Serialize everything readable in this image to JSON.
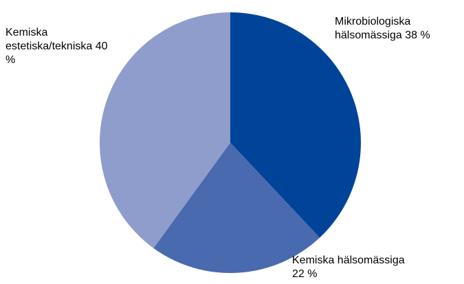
{
  "chart_data": {
    "type": "pie",
    "categories": [
      "Mikrobiologiska hälsomässiga",
      "Kemiska hälsomässiga",
      "Kemiska estetiska/tekniska"
    ],
    "values": [
      38,
      22,
      40
    ],
    "value_labels": [
      "38 %",
      "22 %",
      "40 %"
    ],
    "colors": [
      "#00449a",
      "#4a6aaf",
      "#8e9dcb"
    ]
  }
}
